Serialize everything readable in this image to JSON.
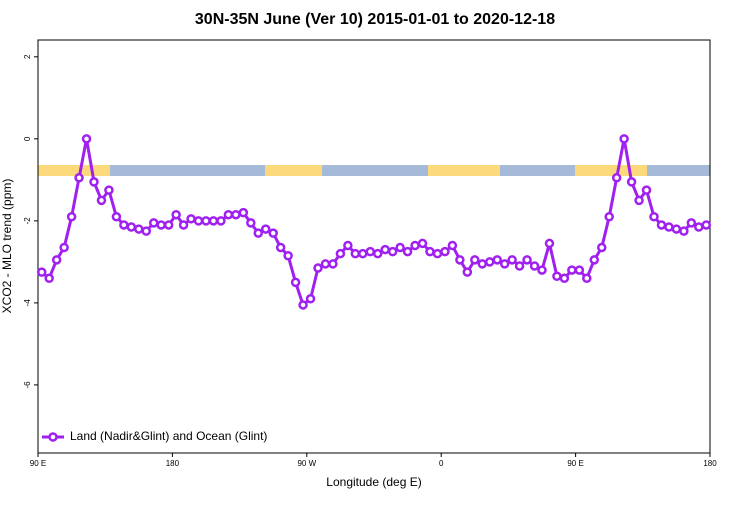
{
  "chart_data": {
    "type": "line",
    "title": "30N-35N June (Ver 10)   2015-01-01 to 2020-12-18",
    "x_label": "Longitude (deg E)",
    "y_label": "XCO2 - MLO trend (ppm)",
    "x": [
      92.5,
      97.5,
      102.5,
      107.5,
      112.5,
      117.5,
      122.5,
      127.5,
      132.5,
      137.5,
      142.5,
      147.5,
      152.5,
      157.5,
      162.5,
      167.5,
      172.5,
      177.5,
      182.5,
      187.5,
      192.5,
      197.5,
      202.5,
      207.5,
      212.5,
      217.5,
      222.5,
      227.5,
      232.5,
      237.5,
      242.5,
      247.5,
      252.5,
      257.5,
      262.5,
      267.5,
      272.5,
      277.5,
      282.5,
      287.5,
      292.5,
      297.5,
      302.5,
      307.5,
      312.5,
      317.5,
      322.5,
      327.5,
      332.5,
      337.5,
      342.5,
      347.5,
      352.5,
      357.5,
      362.5,
      367.5,
      372.5,
      377.5,
      382.5,
      387.5,
      392.5,
      397.5,
      402.5,
      407.5,
      412.5,
      417.5,
      422.5,
      427.5,
      432.5,
      437.5,
      442.5,
      447.5,
      452.5,
      457.5,
      462.5,
      467.5,
      472.5,
      477.5,
      482.5,
      487.5,
      492.5,
      497.5,
      502.5,
      507.5,
      512.5,
      517.5,
      522.5,
      527.5,
      532.5,
      537.5
    ],
    "series": [
      {
        "name": "Land (Nadir&Glint) and Ocean (Glint)",
        "color": "#a020f0",
        "values": [
          -3.25,
          -3.4,
          -2.95,
          -2.65,
          -1.9,
          -0.95,
          0.0,
          -1.05,
          -1.5,
          -1.25,
          -1.9,
          -2.1,
          -2.15,
          -2.2,
          -2.25,
          -2.05,
          -2.1,
          -2.1,
          -1.85,
          -2.1,
          -1.95,
          -2.0,
          -2.0,
          -2.0,
          -2.0,
          -1.85,
          -1.85,
          -1.8,
          -2.05,
          -2.3,
          -2.2,
          -2.3,
          -2.65,
          -2.85,
          -3.5,
          -4.05,
          -3.9,
          -3.15,
          -3.05,
          -3.05,
          -2.8,
          -2.6,
          -2.8,
          -2.8,
          -2.75,
          -2.8,
          -2.7,
          -2.75,
          -2.65,
          -2.75,
          -2.6,
          -2.55,
          -2.75,
          -2.8,
          -2.75,
          -2.6,
          -2.95,
          -3.25,
          -2.95,
          -3.05,
          -3.0,
          -2.95,
          -3.05,
          -2.95,
          -3.1,
          -2.95,
          -3.1,
          -3.2,
          -2.55,
          -3.35,
          -3.4,
          -3.2,
          -3.2,
          -3.4,
          -2.95,
          -2.65,
          -1.9,
          -0.95,
          0.0,
          -1.05,
          -1.5,
          -1.25,
          -1.9,
          -2.1,
          -2.15,
          -2.2,
          -2.25,
          -2.05,
          -2.15,
          -2.1
        ]
      }
    ],
    "xlim": [
      90,
      540
    ],
    "xticks": [
      {
        "value": 90,
        "label": "90 E"
      },
      180,
      {
        "value": 270,
        "label": "90 W"
      },
      {
        "value": 360,
        "label": "0"
      },
      {
        "value": 450,
        "label": "90 E"
      },
      {
        "value": 540,
        "label": "180"
      }
    ],
    "ylim": [
      -7.66,
      2.41
    ],
    "yticks": [
      2,
      0,
      -2,
      -4,
      -6
    ],
    "legend": "bottom-left"
  }
}
